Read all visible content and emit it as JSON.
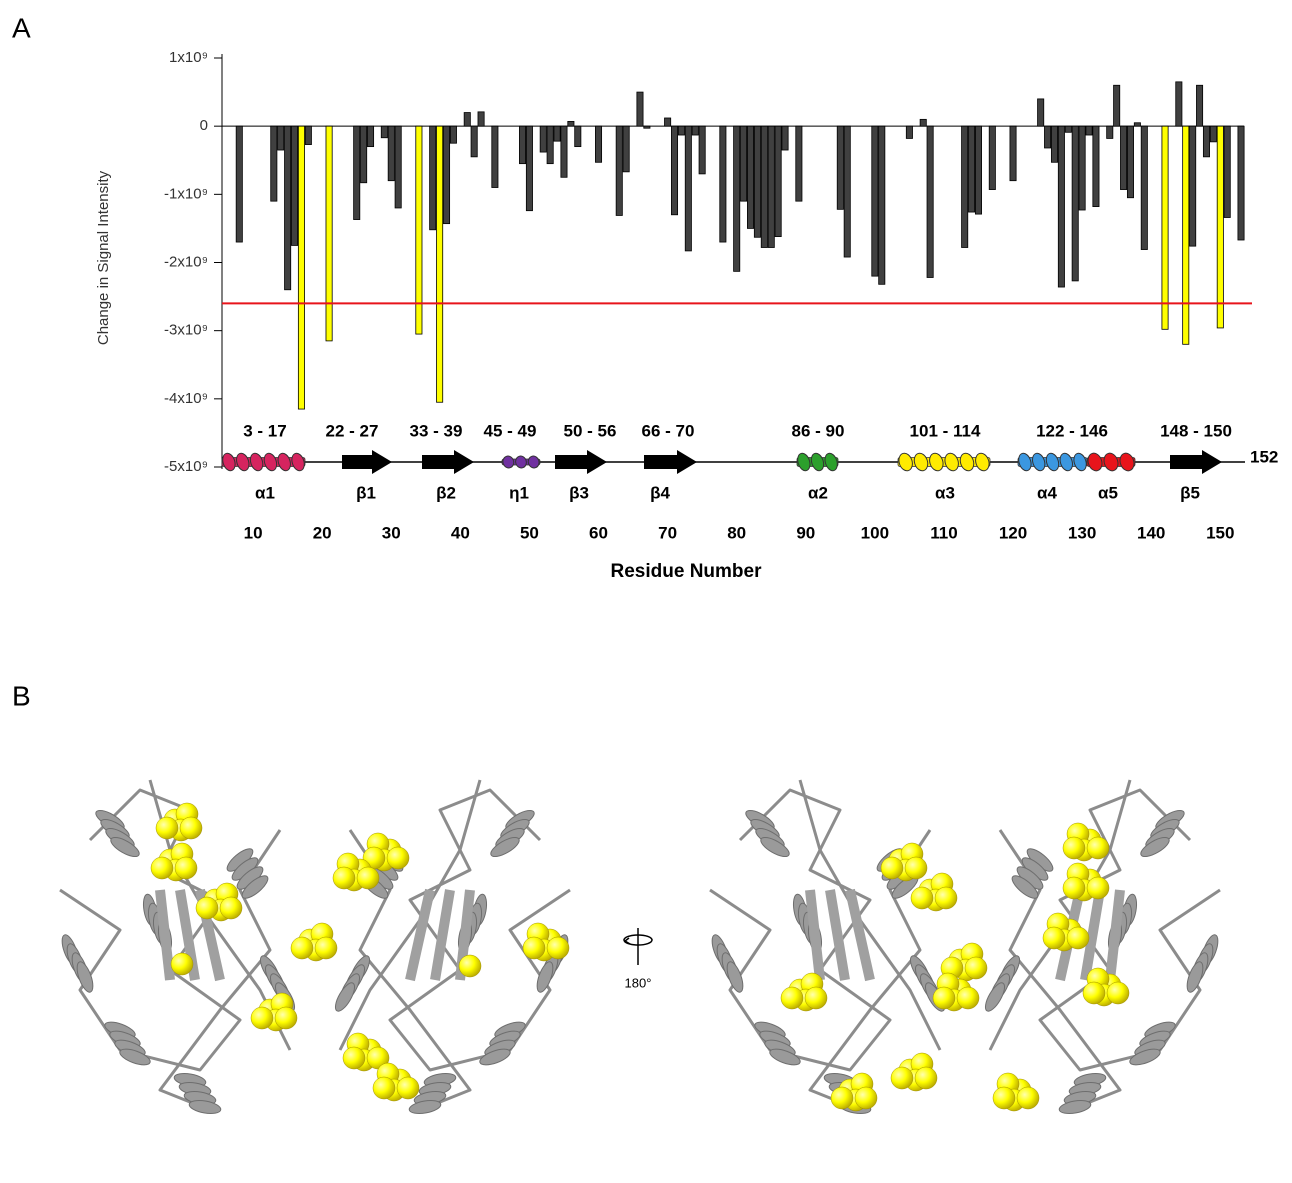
{
  "panel_labels": [
    "A",
    "B"
  ],
  "rotation_label": "180°",
  "chart_data": {
    "type": "bar",
    "ylabel": "Change in Signal Intensity",
    "xlabel": "Residue Number",
    "color": "#404040",
    "highlight_color": "#ffff00",
    "threshold": -2600000000.0,
    "threshold_color": "#e8141b",
    "xlim": [
      5.5,
      154.3
    ],
    "xticks": [
      10,
      20,
      30,
      40,
      50,
      60,
      70,
      80,
      90,
      100,
      110,
      120,
      130,
      140,
      150
    ],
    "ylim": [
      -5000000000.0,
      1000000000.0
    ],
    "yticks": [
      {
        "value": 1000000000.0,
        "label": "1x10⁹"
      },
      0,
      {
        "value": -1000000000.0,
        "label": "-1x10⁹"
      },
      {
        "value": -2000000000.0,
        "label": "-2x10⁹"
      },
      {
        "value": -3000000000.0,
        "label": "-3x10⁹"
      },
      {
        "value": -4000000000.0,
        "label": "-4x10⁹"
      },
      {
        "value": -5000000000.0,
        "label": "-5x10⁹"
      }
    ],
    "x": [
      8,
      13,
      14,
      15,
      16,
      17,
      18,
      21,
      25,
      26,
      27,
      29,
      30,
      31,
      34,
      36,
      37,
      38,
      39,
      41,
      42,
      43,
      45,
      49,
      50,
      52,
      53,
      54,
      55,
      56,
      57,
      60,
      63,
      64,
      66,
      67,
      70,
      71,
      72,
      73,
      74,
      75,
      78,
      80,
      81,
      82,
      83,
      84,
      85,
      86,
      87,
      89,
      95,
      96,
      100,
      101,
      105,
      107,
      108,
      113,
      114,
      115,
      117,
      120,
      124,
      125,
      126,
      127,
      128,
      129,
      130,
      131,
      132,
      134,
      135,
      136,
      137,
      138,
      139,
      142,
      144,
      145,
      146,
      147,
      148,
      149,
      150,
      151,
      153
    ],
    "values": [
      -1700000000.0,
      -1100000000.0,
      -350000000.0,
      -2400000000.0,
      -1750000000.0,
      -4150000000.0,
      -270000000.0,
      -3150000000.0,
      -1370000000.0,
      -830000000.0,
      -300000000.0,
      -170000000.0,
      -800000000.0,
      -1200000000.0,
      -3050000000.0,
      -1520000000.0,
      -4050000000.0,
      -1430000000.0,
      -250000000.0,
      200000000.0,
      -450000000.0,
      210000000.0,
      -900000000.0,
      -550000000.0,
      -1240000000.0,
      -380000000.0,
      -550000000.0,
      -220000000.0,
      -750000000.0,
      70000000.0,
      -300000000.0,
      -530000000.0,
      -1310000000.0,
      -670000000.0,
      500000000.0,
      -30000000.0,
      120000000.0,
      -1300000000.0,
      -130000000.0,
      -1830000000.0,
      -130000000.0,
      -700000000.0,
      -1700000000.0,
      -2130000000.0,
      -1100000000.0,
      -1500000000.0,
      -1630000000.0,
      -1780000000.0,
      -1780000000.0,
      -1620000000.0,
      -350000000.0,
      -1100000000.0,
      -1220000000.0,
      -1920000000.0,
      -2200000000.0,
      -2320000000.0,
      -180000000.0,
      100000000.0,
      -2220000000.0,
      -1780000000.0,
      -1260000000.0,
      -1290000000.0,
      -930000000.0,
      -800000000.0,
      400000000.0,
      -320000000.0,
      -530000000.0,
      -2360000000.0,
      -90000000.0,
      -2270000000.0,
      -1230000000.0,
      -130000000.0,
      -1180000000.0,
      -180000000.0,
      600000000.0,
      -930000000.0,
      -1050000000.0,
      50000000.0,
      -1810000000.0,
      -2980000000.0,
      650000000.0,
      -3200000000.0,
      -1760000000.0,
      600000000.0,
      -450000000.0,
      -230000000.0,
      -2960000000.0,
      -1340000000.0,
      -1670000000.0
    ]
  },
  "topology": {
    "end": "152",
    "elements": [
      {
        "range": "3 - 17",
        "name": "α1",
        "kind": "helix",
        "color": "#d6245f"
      },
      {
        "range": "22 - 27",
        "name": "β1",
        "kind": "strand",
        "color": "#000000"
      },
      {
        "range": "33 - 39",
        "name": "β2",
        "kind": "strand",
        "color": "#000000"
      },
      {
        "range": "45 - 49",
        "name": "η1",
        "kind": "helix",
        "color": "#7030a0"
      },
      {
        "range": "50 - 56",
        "name": "β3",
        "kind": "strand",
        "color": "#000000"
      },
      {
        "range": "66 - 70",
        "name": "β4",
        "kind": "strand",
        "color": "#000000"
      },
      {
        "range": "86 - 90",
        "name": "α2",
        "kind": "helix",
        "color": "#2ca02c"
      },
      {
        "range": "101 - 114",
        "name": "α3",
        "kind": "helix",
        "color": "#ffeb00"
      },
      {
        "range": "122 - 146",
        "name": "α4",
        "kind": "helix",
        "color": "#3b97e0"
      },
      {
        "range": null,
        "name": "α5",
        "kind": "helix",
        "color": "#e8141b"
      },
      {
        "range": "148 - 150",
        "name": "β5",
        "kind": "strand",
        "color": "#000000"
      }
    ]
  }
}
